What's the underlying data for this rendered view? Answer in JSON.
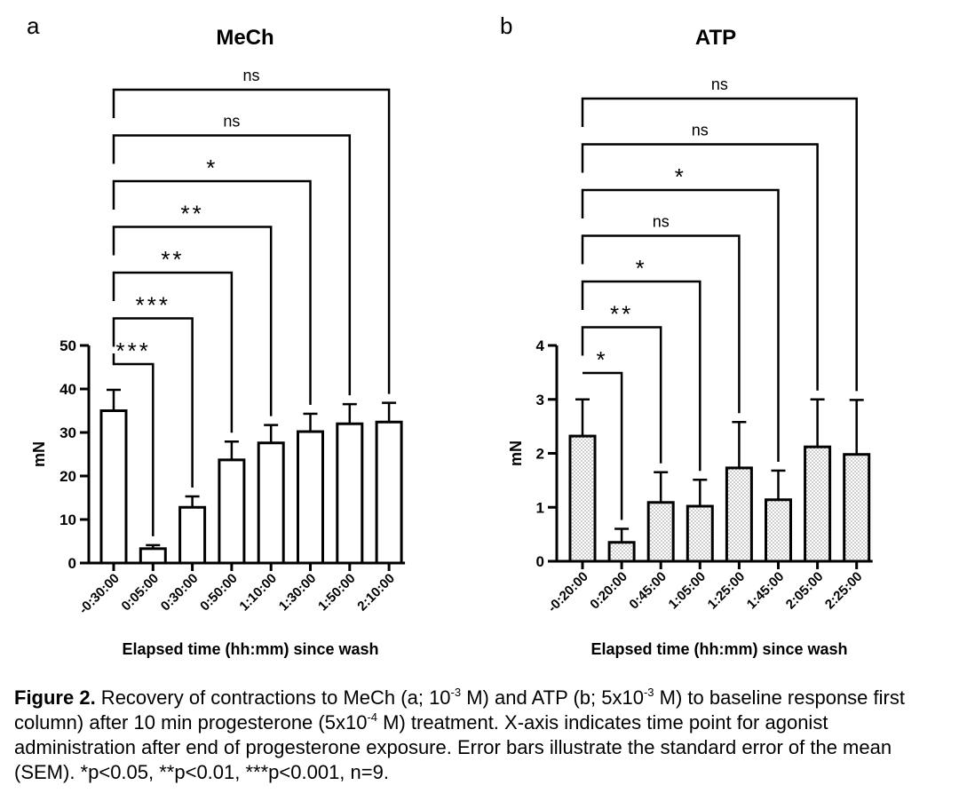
{
  "panels": [
    {
      "letter": "a",
      "chart_data": {
        "type": "bar",
        "title": "MeCh",
        "xlabel": "Elapsed time (hh:mm) since wash",
        "ylabel": "mN",
        "categories": [
          "-0:30:00",
          "0:05:00",
          "0:30:00",
          "0:50:00",
          "1:10:00",
          "1:30:00",
          "1:50:00",
          "2:10:00"
        ],
        "values": [
          35,
          3.3,
          12.8,
          23.7,
          27.6,
          30.2,
          32.0,
          32.4
        ],
        "errors": [
          4.8,
          0.8,
          2.5,
          4.2,
          4.1,
          4.1,
          4.5,
          4.4
        ],
        "ylim": [
          0,
          50
        ],
        "yticks": [
          "0",
          "10",
          "20",
          "30",
          "40",
          "50"
        ],
        "fill": "plain",
        "comparisons": [
          {
            "to": 1,
            "label": "***"
          },
          {
            "to": 2,
            "label": "***"
          },
          {
            "to": 3,
            "label": "**"
          },
          {
            "to": 4,
            "label": "**"
          },
          {
            "to": 5,
            "label": "*"
          },
          {
            "to": 6,
            "label": "ns"
          },
          {
            "to": 7,
            "label": "ns"
          }
        ]
      }
    },
    {
      "letter": "b",
      "chart_data": {
        "type": "bar",
        "title": "ATP",
        "xlabel": "Elapsed time (hh:mm) since wash",
        "ylabel": "mN",
        "categories": [
          "-0:20:00",
          "0:20:00",
          "0:45:00",
          "1:05:00",
          "1:25:00",
          "1:45:00",
          "2:05:00",
          "2:25:00"
        ],
        "values": [
          2.32,
          0.35,
          1.09,
          1.02,
          1.73,
          1.14,
          2.12,
          1.98
        ],
        "errors": [
          0.68,
          0.25,
          0.56,
          0.49,
          0.85,
          0.54,
          0.88,
          1.01
        ],
        "ylim": [
          0,
          4
        ],
        "yticks": [
          "0",
          "1",
          "2",
          "3",
          "4"
        ],
        "fill": "dotted",
        "comparisons": [
          {
            "to": 1,
            "label": "*"
          },
          {
            "to": 2,
            "label": "**"
          },
          {
            "to": 3,
            "label": "*"
          },
          {
            "to": 4,
            "label": "ns"
          },
          {
            "to": 5,
            "label": "*"
          },
          {
            "to": 6,
            "label": "ns"
          },
          {
            "to": 7,
            "label": "ns"
          }
        ]
      }
    }
  ],
  "caption": {
    "label": "Figure 2.",
    "text_1": " Recovery of contractions to MeCh (a; 10",
    "sup_1": "-3",
    "text_2": " M) and ATP (b; 5x10",
    "sup_2": "-3",
    "text_3": " M) to baseline response first column) after 10 min progesterone (5x10",
    "sup_3": "-4",
    "text_4": " M) treatment. X-axis indicates time point for agonist administration after end of progesterone exposure. Error bars illustrate the standard error of the mean (SEM). *p<0.05, **p<0.01, ***p<0.001, n=9."
  }
}
